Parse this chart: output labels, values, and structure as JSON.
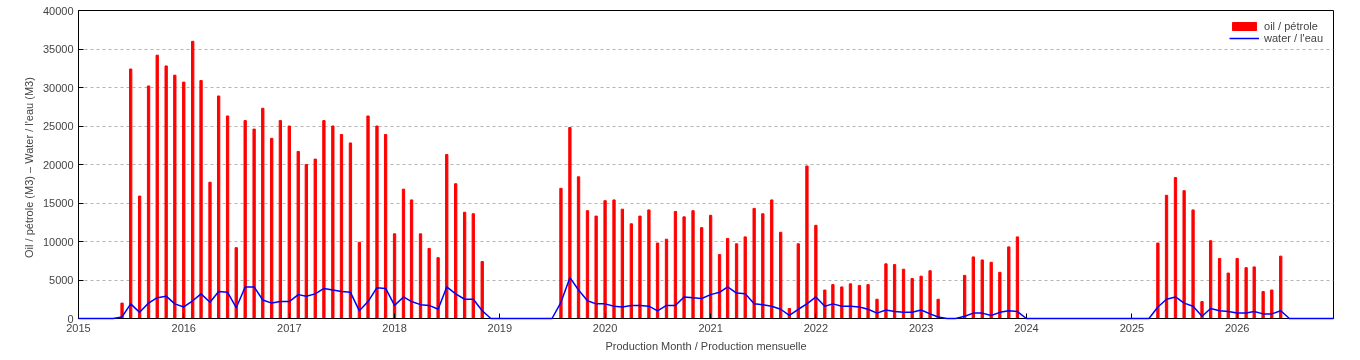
{
  "chart_data": {
    "type": "bar",
    "xlabel": "Production Month / Production mensuelle",
    "ylabel": "Oil / pétrole (M3)  –  Water / l'eau (M3)",
    "x": [
      "2015-01",
      "2015-02",
      "2015-03",
      "2015-04",
      "2015-05",
      "2015-06",
      "2015-07",
      "2015-08",
      "2015-09",
      "2015-10",
      "2015-11",
      "2015-12",
      "2016-01",
      "2016-02",
      "2016-03",
      "2016-04",
      "2016-05",
      "2016-06",
      "2016-07",
      "2016-08",
      "2016-09",
      "2016-10",
      "2016-11",
      "2016-12",
      "2017-01",
      "2017-02",
      "2017-03",
      "2017-04",
      "2017-05",
      "2017-06",
      "2017-07",
      "2017-08",
      "2017-09",
      "2017-10",
      "2017-11",
      "2017-12",
      "2018-01",
      "2018-02",
      "2018-03",
      "2018-04",
      "2018-05",
      "2018-06",
      "2018-07",
      "2018-08",
      "2018-09",
      "2018-10",
      "2018-11",
      "2018-12",
      "2019-01",
      "2019-02",
      "2019-03",
      "2019-04",
      "2019-05",
      "2019-06",
      "2019-07",
      "2019-08",
      "2019-09",
      "2019-10",
      "2019-11",
      "2019-12",
      "2020-01",
      "2020-02",
      "2020-03",
      "2020-04",
      "2020-05",
      "2020-06",
      "2020-07",
      "2020-08",
      "2020-09",
      "2020-10",
      "2020-11",
      "2020-12",
      "2021-01",
      "2021-02",
      "2021-03",
      "2021-04",
      "2021-05",
      "2021-06",
      "2021-07",
      "2021-08",
      "2021-09",
      "2021-10",
      "2021-11",
      "2021-12",
      "2022-01",
      "2022-02",
      "2022-03",
      "2022-04",
      "2022-05",
      "2022-06",
      "2022-07",
      "2022-08",
      "2022-09",
      "2022-10",
      "2022-11",
      "2022-12",
      "2023-01",
      "2023-02",
      "2023-03",
      "2023-04",
      "2023-05",
      "2023-06",
      "2023-07",
      "2023-08",
      "2023-09",
      "2023-10",
      "2023-11",
      "2023-12",
      "2024-01",
      "2024-02",
      "2024-03",
      "2024-04",
      "2024-05",
      "2024-06",
      "2024-07",
      "2024-08",
      "2024-09",
      "2024-10",
      "2024-11",
      "2024-12",
      "2025-01",
      "2025-02",
      "2025-03",
      "2025-04",
      "2025-05",
      "2025-06",
      "2025-07",
      "2025-08",
      "2025-09",
      "2025-10",
      "2025-11",
      "2025-12",
      "2026-01",
      "2026-02",
      "2026-03",
      "2026-04",
      "2026-05",
      "2026-06",
      "2026-07",
      "2026-08",
      "2026-09",
      "2026-10",
      "2026-11",
      "2026-12"
    ],
    "series": [
      {
        "name": "oil / pétrole",
        "color": "#ff0000",
        "values": [
          null,
          null,
          null,
          null,
          null,
          2000,
          32400,
          15900,
          30200,
          34200,
          32800,
          31600,
          30700,
          36000,
          30900,
          17700,
          28900,
          26300,
          9200,
          25700,
          24600,
          27300,
          23400,
          25700,
          25000,
          21700,
          20000,
          20700,
          25700,
          25000,
          23900,
          22800,
          9900,
          26300,
          25000,
          23900,
          11000,
          16800,
          15400,
          11000,
          9100,
          7900,
          21300,
          17500,
          13800,
          13600,
          7400,
          null,
          null,
          null,
          null,
          null,
          null,
          null,
          null,
          16900,
          24800,
          18400,
          14000,
          13300,
          15300,
          15400,
          14200,
          12300,
          13300,
          14100,
          9800,
          10300,
          13900,
          13200,
          14000,
          11800,
          13400,
          8300,
          10400,
          9700,
          10600,
          14300,
          13600,
          15400,
          11200,
          1300,
          9700,
          19800,
          12100,
          3700,
          4400,
          4100,
          4500,
          4300,
          4400,
          2500,
          7100,
          7000,
          6400,
          5200,
          5500,
          6200,
          2500,
          null,
          null,
          5600,
          8000,
          7600,
          7300,
          6000,
          9300,
          10600,
          null,
          null,
          null,
          null,
          null,
          null,
          null,
          null,
          null,
          null,
          null,
          null,
          null,
          null,
          null,
          9800,
          16000,
          18300,
          16600,
          14100,
          2200,
          10100,
          7800,
          5900,
          7800,
          6600,
          6700,
          3500,
          3700,
          8100,
          null,
          null,
          null,
          null,
          null,
          null
        ]
      },
      {
        "name": "water / l'eau",
        "type": "line",
        "color": "#0000ff",
        "values": [
          0,
          0,
          0,
          0,
          0,
          200,
          1900,
          800,
          2000,
          2700,
          2900,
          1900,
          1500,
          2300,
          3200,
          2100,
          3500,
          3400,
          1400,
          4100,
          4100,
          2400,
          2000,
          2200,
          2200,
          3100,
          2900,
          3200,
          3900,
          3700,
          3500,
          3400,
          1000,
          2200,
          4000,
          3900,
          1700,
          2800,
          2200,
          1800,
          1700,
          1200,
          4100,
          3200,
          2500,
          2500,
          1000,
          0,
          0,
          0,
          0,
          0,
          0,
          0,
          0,
          2100,
          5300,
          3700,
          2300,
          1900,
          1900,
          1600,
          1500,
          1700,
          1700,
          1600,
          1000,
          1700,
          1700,
          2800,
          2700,
          2600,
          3100,
          3400,
          4100,
          3300,
          3200,
          1900,
          1800,
          1600,
          1200,
          400,
          1200,
          1900,
          2800,
          1600,
          1900,
          1600,
          1600,
          1500,
          1200,
          700,
          1100,
          900,
          800,
          800,
          1100,
          600,
          200,
          0,
          0,
          300,
          700,
          700,
          400,
          800,
          1000,
          900,
          0,
          0,
          0,
          0,
          0,
          0,
          0,
          0,
          0,
          0,
          0,
          0,
          0,
          0,
          0,
          1500,
          2500,
          2800,
          2000,
          1600,
          300,
          1300,
          1000,
          900,
          700,
          700,
          900,
          600,
          600,
          1000,
          0,
          0,
          0,
          0,
          0,
          0
        ]
      }
    ],
    "xlim": [
      "2015-01",
      "2026-12"
    ],
    "xticks": [
      "2015",
      "2016",
      "2017",
      "2018",
      "2019",
      "2020",
      "2021",
      "2022",
      "2023",
      "2024",
      "2025",
      "2026"
    ],
    "ylim": [
      0,
      40000
    ],
    "yticks": [
      0,
      5000,
      10000,
      15000,
      20000,
      25000,
      30000,
      35000,
      40000
    ],
    "grid": "y",
    "legend": "top right",
    "marker": "none"
  }
}
